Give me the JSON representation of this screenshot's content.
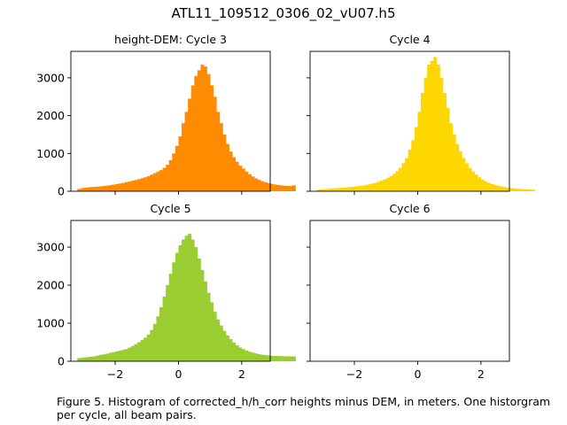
{
  "figure": {
    "title": "ATL11_109512_0306_02_vU07.h5",
    "caption": "Figure 5. Histogram of corrected_h/h_corr heights minus DEM, in meters. One historgram per cycle, all beam pairs."
  },
  "chart_data": [
    {
      "type": "bar",
      "title": "height-DEM: Cycle 3",
      "color": "#ff8c00",
      "xlim": [
        -3.4,
        2.9
      ],
      "ylim": [
        0,
        3700
      ],
      "xticks": [
        -2,
        0,
        2
      ],
      "yticks": [
        0,
        1000,
        2000,
        3000
      ],
      "show_xticklabels": false,
      "show_yticklabels": true,
      "bin_start": -3.2,
      "bin_width": 0.1,
      "values": [
        60,
        80,
        95,
        105,
        110,
        115,
        125,
        130,
        140,
        150,
        160,
        175,
        190,
        205,
        220,
        240,
        260,
        280,
        300,
        320,
        345,
        370,
        400,
        440,
        480,
        520,
        560,
        620,
        700,
        820,
        1000,
        1200,
        1450,
        1800,
        2100,
        2450,
        2800,
        3050,
        3200,
        3350,
        3300,
        3100,
        2800,
        2500,
        2100,
        1800,
        1500,
        1250,
        1050,
        900,
        780,
        680,
        600,
        520,
        450,
        390,
        340,
        300,
        265,
        240,
        215,
        195,
        180,
        165,
        155,
        145,
        140,
        140,
        155
      ]
    },
    {
      "type": "bar",
      "title": "Cycle 4",
      "color": "#ffd700",
      "xlim": [
        -3.4,
        2.9
      ],
      "ylim": [
        0,
        3700
      ],
      "xticks": [
        -2,
        0,
        2
      ],
      "yticks": [
        0,
        1000,
        2000,
        3000
      ],
      "show_xticklabels": false,
      "show_yticklabels": false,
      "bin_start": -3.2,
      "bin_width": 0.1,
      "values": [
        40,
        50,
        55,
        60,
        70,
        75,
        80,
        90,
        95,
        100,
        110,
        120,
        130,
        140,
        150,
        165,
        180,
        200,
        220,
        250,
        280,
        310,
        350,
        400,
        460,
        530,
        620,
        740,
        880,
        1100,
        1350,
        1700,
        2100,
        2600,
        3000,
        3350,
        3450,
        3550,
        3350,
        3000,
        2600,
        2200,
        1800,
        1500,
        1250,
        1050,
        880,
        740,
        620,
        520,
        440,
        370,
        310,
        260,
        220,
        190,
        165,
        145,
        125,
        110,
        95,
        85,
        75,
        65,
        60,
        55,
        50,
        45,
        40
      ]
    },
    {
      "type": "bar",
      "title": "Cycle 5",
      "color": "#9acd32",
      "xlim": [
        -3.4,
        2.9
      ],
      "ylim": [
        0,
        3700
      ],
      "xticks": [
        -2,
        0,
        2
      ],
      "yticks": [
        0,
        1000,
        2000,
        3000
      ],
      "show_xticklabels": true,
      "show_yticklabels": true,
      "bin_start": -3.2,
      "bin_width": 0.1,
      "values": [
        80,
        90,
        100,
        110,
        120,
        130,
        150,
        170,
        180,
        200,
        220,
        240,
        260,
        280,
        300,
        320,
        360,
        400,
        450,
        500,
        560,
        620,
        700,
        820,
        980,
        1180,
        1420,
        1700,
        2000,
        2300,
        2600,
        2850,
        3050,
        3200,
        3300,
        3350,
        3200,
        3000,
        2700,
        2400,
        2100,
        1800,
        1550,
        1300,
        1100,
        940,
        800,
        680,
        580,
        490,
        420,
        360,
        320,
        280,
        250,
        225,
        205,
        185,
        170,
        160,
        150,
        145,
        140,
        138,
        135,
        132,
        130,
        128,
        126
      ]
    },
    {
      "type": "bar",
      "title": "Cycle 6",
      "color": "#1f77b4",
      "xlim": [
        -3.4,
        2.9
      ],
      "ylim": [
        0,
        3700
      ],
      "xticks": [
        -2,
        0,
        2
      ],
      "yticks": [
        0,
        1000,
        2000,
        3000
      ],
      "show_xticklabels": true,
      "show_yticklabels": false,
      "bin_start": -3.2,
      "bin_width": 0.1,
      "values": []
    }
  ]
}
